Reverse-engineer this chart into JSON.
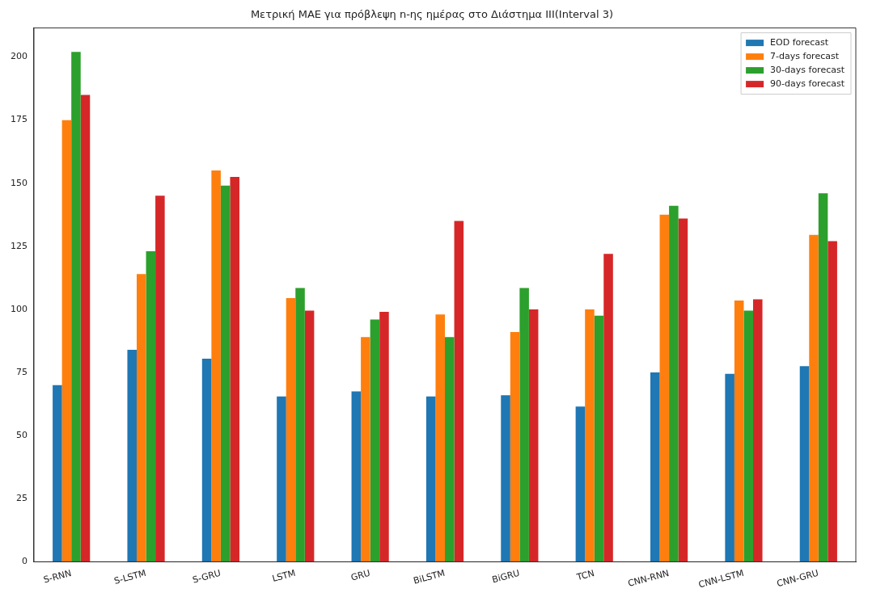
{
  "chart_data": {
    "type": "bar",
    "title": "Μετρική MAE για πρόβλεψη n-ης ημέρας στο Διάστημα III(Interval 3)",
    "categories": [
      "S-RNN",
      "S-LSTM",
      "S-GRU",
      "LSTM",
      "GRU",
      "BiLSTM",
      "BiGRU",
      "TCN",
      "CNN-RNN",
      "CNN-LSTM",
      "CNN-GRU"
    ],
    "series": [
      {
        "name": "EOD forecast",
        "color": "#1f77b4",
        "values": [
          70,
          84,
          80.5,
          65.5,
          67.5,
          65.5,
          66,
          61.5,
          75,
          74.5,
          77.5
        ]
      },
      {
        "name": "7-days forecast",
        "color": "#ff7f0e",
        "values": [
          175,
          114,
          155,
          104.5,
          89,
          98,
          91,
          100,
          137.5,
          103.5,
          129.5
        ]
      },
      {
        "name": "30-days forecast",
        "color": "#2ca02c",
        "values": [
          202,
          123,
          149,
          108.5,
          96,
          89,
          108.5,
          97.5,
          141,
          99.5,
          146
        ]
      },
      {
        "name": "90-days forecast",
        "color": "#d62728",
        "values": [
          185,
          145,
          152.5,
          99.5,
          99,
          135,
          100,
          122,
          136,
          104,
          127
        ]
      }
    ],
    "ylim": [
      0,
      211.5
    ],
    "yticks": [
      0,
      25,
      50,
      75,
      100,
      125,
      150,
      175,
      200
    ],
    "grid": false,
    "legend": "top right"
  }
}
